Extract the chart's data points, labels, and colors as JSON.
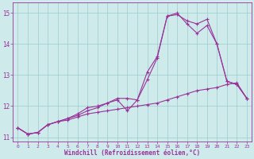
{
  "xlabel": "Windchill (Refroidissement éolien,°C)",
  "bg_color": "#ceeaea",
  "line_color": "#993399",
  "grid_color": "#99cccc",
  "xlim": [
    -0.5,
    23.5
  ],
  "ylim": [
    10.85,
    15.35
  ],
  "yticks": [
    11,
    12,
    13,
    14,
    15
  ],
  "xticks": [
    0,
    1,
    2,
    3,
    4,
    5,
    6,
    7,
    8,
    9,
    10,
    11,
    12,
    13,
    14,
    15,
    16,
    17,
    18,
    19,
    20,
    21,
    22,
    23
  ],
  "line1_x": [
    0,
    1,
    2,
    3,
    4,
    5,
    6,
    7,
    8,
    9,
    10,
    11,
    12,
    13,
    14,
    15,
    16,
    17,
    18,
    19,
    20,
    21,
    22,
    23
  ],
  "line1_y": [
    11.3,
    11.1,
    11.15,
    11.4,
    11.5,
    11.55,
    11.65,
    11.75,
    11.8,
    11.85,
    11.9,
    11.95,
    12.0,
    12.05,
    12.1,
    12.2,
    12.3,
    12.4,
    12.5,
    12.55,
    12.6,
    12.7,
    12.75,
    12.25
  ],
  "line2_x": [
    0,
    1,
    2,
    3,
    4,
    5,
    6,
    7,
    8,
    9,
    10,
    11,
    12,
    13,
    14,
    15,
    16,
    17,
    18,
    19,
    20,
    21,
    22,
    23
  ],
  "line2_y": [
    11.3,
    11.1,
    11.15,
    11.4,
    11.5,
    11.6,
    11.7,
    11.85,
    11.95,
    12.1,
    12.2,
    11.85,
    12.2,
    12.85,
    13.55,
    14.9,
    14.95,
    14.75,
    14.65,
    14.8,
    14.0,
    12.8,
    12.7,
    12.25
  ],
  "line3_x": [
    0,
    1,
    2,
    3,
    4,
    5,
    6,
    7,
    8,
    9,
    10,
    11,
    12,
    13,
    14,
    15,
    16,
    17,
    18,
    19,
    20,
    21,
    22,
    23
  ],
  "line3_y": [
    11.3,
    11.1,
    11.15,
    11.4,
    11.5,
    11.6,
    11.75,
    11.95,
    12.0,
    12.1,
    12.25,
    12.25,
    12.2,
    13.1,
    13.6,
    14.9,
    15.0,
    14.65,
    14.35,
    14.6,
    14.0,
    12.8,
    12.7,
    12.25
  ]
}
